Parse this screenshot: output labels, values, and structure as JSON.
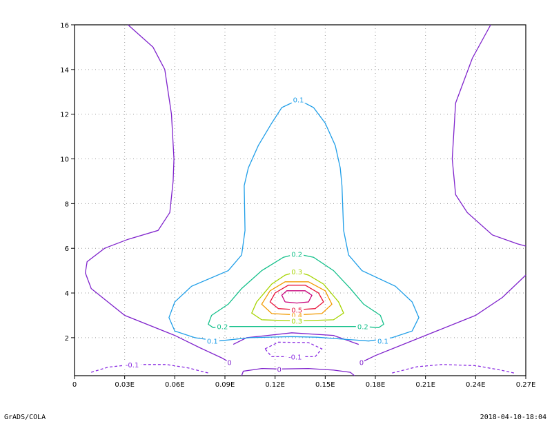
{
  "footer": {
    "left": "GrADS/COLA",
    "right": "2018-04-10-18:04"
  },
  "colors": {
    "c_neg01": "#8a2be2",
    "c_0": "#7f22cc",
    "c_01": "#1f9ee8",
    "c_02": "#13c08a",
    "c_03": "#a6d400",
    "c_04": "#f29a00",
    "c_05": "#e8123a",
    "c_06": "#c8007a"
  },
  "chart_data": {
    "type": "contour",
    "title": "",
    "xlabel": "",
    "ylabel": "",
    "xlim": [
      0,
      0.27
    ],
    "ylim": [
      0.3,
      16
    ],
    "grid": true,
    "x_ticks": [
      0,
      0.03,
      0.06,
      0.09,
      0.12,
      0.15,
      0.18,
      0.21,
      0.24,
      0.27
    ],
    "x_tick_labels": [
      "0",
      "0.03E",
      "0.06E",
      "0.09E",
      "0.12E",
      "0.15E",
      "0.18E",
      "0.21E",
      "0.24E",
      "0.27E"
    ],
    "y_ticks": [
      2,
      4,
      6,
      8,
      10,
      12,
      14,
      16
    ],
    "y_tick_labels": [
      "2",
      "4",
      "6",
      "8",
      "10",
      "12",
      "14",
      "16"
    ],
    "contours": [
      {
        "level": 0,
        "color": "c_0",
        "label": "0",
        "label_at": [
          0.0927,
          0.9
        ],
        "points": [
          [
            0.032,
            16
          ],
          [
            0.047,
            15
          ],
          [
            0.054,
            14
          ],
          [
            0.058,
            12
          ],
          [
            0.0595,
            10
          ],
          [
            0.059,
            9
          ],
          [
            0.057,
            7.6
          ],
          [
            0.05,
            6.8
          ],
          [
            0.032,
            6.4
          ],
          [
            0.018,
            6
          ],
          [
            0.0075,
            5.4
          ],
          [
            0.0065,
            4.9
          ],
          [
            0.01,
            4.2
          ],
          [
            0.03,
            3
          ],
          [
            0.06,
            2.1
          ],
          [
            0.075,
            1.55
          ],
          [
            0.088,
            1.1
          ],
          [
            0.0927,
            0.9
          ]
        ]
      },
      {
        "level": 0,
        "color": "c_0",
        "label": "0",
        "label_at": [
          0.1717,
          0.9
        ],
        "points": [
          [
            0.1717,
            0.9
          ],
          [
            0.18,
            1.2
          ],
          [
            0.21,
            2.1
          ],
          [
            0.24,
            3.0
          ],
          [
            0.256,
            3.8
          ],
          [
            0.27,
            4.8
          ]
        ]
      },
      {
        "level": 0,
        "color": "c_0",
        "label": "",
        "points": [
          [
            0.27,
            6.1
          ],
          [
            0.265,
            6.2
          ],
          [
            0.25,
            6.6
          ],
          [
            0.235,
            7.6
          ],
          [
            0.228,
            8.4
          ],
          [
            0.226,
            10
          ],
          [
            0.228,
            12.5
          ],
          [
            0.238,
            14.5
          ],
          [
            0.249,
            16
          ]
        ]
      },
      {
        "level": 0,
        "color": "c_0",
        "label": "0",
        "label_at": [
          0.1225,
          0.6
        ],
        "points": [
          [
            0.1,
            0.3
          ],
          [
            0.101,
            0.5
          ],
          [
            0.112,
            0.62
          ],
          [
            0.1225,
            0.6
          ],
          [
            0.14,
            0.62
          ],
          [
            0.155,
            0.55
          ],
          [
            0.165,
            0.45
          ],
          [
            0.1675,
            0.3
          ]
        ]
      },
      {
        "level": 0,
        "color": "c_0",
        "label": "",
        "points": [
          [
            0.095,
            1.7
          ],
          [
            0.103,
            2.0
          ],
          [
            0.13,
            2.22
          ],
          [
            0.155,
            2.1
          ],
          [
            0.17,
            1.7
          ]
        ]
      },
      {
        "level": -0.1,
        "color": "c_neg01",
        "dashed": true,
        "label": "-0.1",
        "label_at": [
          0.0345,
          0.8
        ],
        "points": [
          [
            0.01,
            0.45
          ],
          [
            0.02,
            0.68
          ],
          [
            0.0345,
            0.8
          ],
          [
            0.055,
            0.8
          ],
          [
            0.068,
            0.65
          ],
          [
            0.08,
            0.42
          ]
        ]
      },
      {
        "level": -0.1,
        "color": "c_neg01",
        "dashed": true,
        "label": "",
        "points": [
          [
            0.19,
            0.42
          ],
          [
            0.205,
            0.7
          ],
          [
            0.22,
            0.8
          ],
          [
            0.24,
            0.75
          ],
          [
            0.255,
            0.55
          ],
          [
            0.263,
            0.42
          ]
        ]
      },
      {
        "level": -0.1,
        "color": "c_neg01",
        "dashed": true,
        "label": "-0.1",
        "label_at": [
          0.132,
          1.15
        ],
        "points": [
          [
            0.114,
            1.5
          ],
          [
            0.122,
            1.8
          ],
          [
            0.14,
            1.78
          ],
          [
            0.148,
            1.5
          ],
          [
            0.144,
            1.15
          ],
          [
            0.132,
            1.15
          ],
          [
            0.118,
            1.15
          ],
          [
            0.114,
            1.5
          ]
        ]
      },
      {
        "level": 0.1,
        "color": "c_01",
        "label": "0.1",
        "label_at": [
          0.134,
          12.65
        ],
        "points": [
          [
            0.086,
            1.85
          ],
          [
            0.072,
            2.0
          ],
          [
            0.06,
            2.3
          ],
          [
            0.0565,
            2.9
          ],
          [
            0.06,
            3.6
          ],
          [
            0.07,
            4.3
          ],
          [
            0.092,
            5.0
          ],
          [
            0.1,
            5.7
          ],
          [
            0.102,
            6.8
          ],
          [
            0.1015,
            8.8
          ],
          [
            0.104,
            9.6
          ],
          [
            0.11,
            10.6
          ],
          [
            0.118,
            11.6
          ],
          [
            0.124,
            12.3
          ],
          [
            0.134,
            12.65
          ],
          [
            0.143,
            12.3
          ],
          [
            0.15,
            11.6
          ],
          [
            0.156,
            10.6
          ],
          [
            0.159,
            9.6
          ],
          [
            0.16,
            8.8
          ],
          [
            0.161,
            6.8
          ],
          [
            0.164,
            5.7
          ],
          [
            0.172,
            5.0
          ],
          [
            0.192,
            4.3
          ],
          [
            0.202,
            3.6
          ],
          [
            0.206,
            2.9
          ],
          [
            0.202,
            2.3
          ],
          [
            0.19,
            2.0
          ],
          [
            0.176,
            1.85
          ],
          [
            0.145,
            2.02
          ],
          [
            0.13,
            2.05
          ],
          [
            0.105,
            2.0
          ],
          [
            0.086,
            1.85
          ]
        ]
      },
      {
        "level": 0.2,
        "color": "c_02",
        "label": "0.2",
        "label_at": [
          0.133,
          5.75
        ],
        "points": [
          [
            0.0885,
            2.5
          ],
          [
            0.083,
            2.45
          ],
          [
            0.08,
            2.6
          ],
          [
            0.082,
            3.0
          ],
          [
            0.092,
            3.5
          ],
          [
            0.1,
            4.2
          ],
          [
            0.112,
            5.0
          ],
          [
            0.125,
            5.6
          ],
          [
            0.133,
            5.75
          ],
          [
            0.143,
            5.6
          ],
          [
            0.155,
            5.0
          ],
          [
            0.165,
            4.2
          ],
          [
            0.173,
            3.5
          ],
          [
            0.183,
            3.0
          ],
          [
            0.185,
            2.6
          ],
          [
            0.182,
            2.45
          ],
          [
            0.1725,
            2.5
          ],
          [
            0.133,
            2.5
          ],
          [
            0.0885,
            2.5
          ]
        ]
      },
      {
        "level": 0.3,
        "color": "c_03",
        "label": "0.3",
        "label_at": [
          0.133,
          4.95
        ],
        "points": [
          [
            0.133,
            2.75
          ],
          [
            0.112,
            2.8
          ],
          [
            0.106,
            3.1
          ],
          [
            0.109,
            3.6
          ],
          [
            0.118,
            4.4
          ],
          [
            0.126,
            4.8
          ],
          [
            0.133,
            4.95
          ],
          [
            0.14,
            4.8
          ],
          [
            0.149,
            4.4
          ],
          [
            0.158,
            3.6
          ],
          [
            0.161,
            3.1
          ],
          [
            0.155,
            2.8
          ],
          [
            0.133,
            2.75
          ]
        ]
      },
      {
        "level": 0.4,
        "color": "c_04",
        "label": "0.4",
        "label_at": [
          0.133,
          3.02
        ],
        "points": [
          [
            0.133,
            3.02
          ],
          [
            0.118,
            3.08
          ],
          [
            0.112,
            3.5
          ],
          [
            0.117,
            4.1
          ],
          [
            0.126,
            4.5
          ],
          [
            0.14,
            4.5
          ],
          [
            0.15,
            4.1
          ],
          [
            0.154,
            3.5
          ],
          [
            0.148,
            3.08
          ],
          [
            0.133,
            3.02
          ]
        ]
      },
      {
        "level": 0.5,
        "color": "c_05",
        "label": "0.5",
        "label_at": [
          0.133,
          3.25
        ],
        "points": [
          [
            0.133,
            3.25
          ],
          [
            0.122,
            3.3
          ],
          [
            0.117,
            3.6
          ],
          [
            0.12,
            4.0
          ],
          [
            0.128,
            4.35
          ],
          [
            0.138,
            4.35
          ],
          [
            0.146,
            4.0
          ],
          [
            0.149,
            3.6
          ],
          [
            0.144,
            3.3
          ],
          [
            0.133,
            3.25
          ]
        ]
      },
      {
        "level": 0.6,
        "color": "c_06",
        "label": "",
        "points": [
          [
            0.126,
            3.6
          ],
          [
            0.124,
            3.9
          ],
          [
            0.127,
            4.1
          ],
          [
            0.138,
            4.1
          ],
          [
            0.142,
            3.9
          ],
          [
            0.14,
            3.6
          ],
          [
            0.133,
            3.55
          ],
          [
            0.126,
            3.6
          ]
        ]
      }
    ],
    "extra_labels": [
      {
        "text": "0.1",
        "color": "c_01",
        "at": [
          0.0825,
          1.85
        ]
      },
      {
        "text": "0.1",
        "color": "c_01",
        "at": [
          0.1845,
          1.85
        ]
      },
      {
        "text": "0.2",
        "color": "c_02",
        "at": [
          0.0885,
          2.5
        ]
      },
      {
        "text": "0.2",
        "color": "c_02",
        "at": [
          0.1725,
          2.5
        ]
      },
      {
        "text": "0.3",
        "color": "c_03",
        "at": [
          0.133,
          2.75
        ]
      }
    ]
  }
}
